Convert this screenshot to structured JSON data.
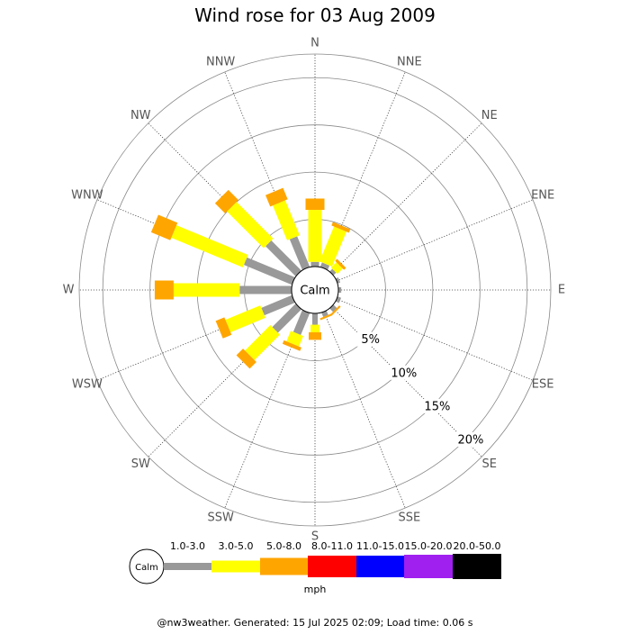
{
  "chart_data": {
    "type": "wind-rose",
    "title": "Wind rose for 03 Aug 2009",
    "directions": [
      "N",
      "NNE",
      "NE",
      "ENE",
      "E",
      "ESE",
      "SE",
      "SSE",
      "S",
      "SSW",
      "SW",
      "WSW",
      "W",
      "WNW",
      "NW",
      "NNW"
    ],
    "calm_label": "Calm",
    "rings": [
      5,
      10,
      15,
      20
    ],
    "ring_labels": [
      "5%",
      "10%",
      "15%",
      "20%"
    ],
    "rmax": 22.5,
    "unit": "mph",
    "speed_bins": [
      {
        "label": "1.0-3.0",
        "color": "#999999"
      },
      {
        "label": "3.0-5.0",
        "color": "#ffff00"
      },
      {
        "label": "5.0-8.0",
        "color": "#ffa500"
      },
      {
        "label": "8.0-11.0",
        "color": "#ff0000"
      },
      {
        "label": "11.0-15.0",
        "color": "#0000ff"
      },
      {
        "label": "15.0-20.0",
        "color": "#a020f0"
      },
      {
        "label": "20.0-50.0",
        "color": "#000000"
      }
    ],
    "frequencies": [
      [
        0.5,
        5.5,
        1.2,
        0,
        0,
        0,
        0
      ],
      [
        0.5,
        4.0,
        0.4,
        0,
        0,
        0,
        0
      ],
      [
        0.4,
        0.8,
        0.3,
        0,
        0,
        0,
        0
      ],
      [
        0.3,
        0,
        0,
        0,
        0,
        0,
        0
      ],
      [
        0.3,
        0,
        0,
        0,
        0,
        0,
        0
      ],
      [
        0.4,
        0,
        0,
        0,
        0,
        0,
        0
      ],
      [
        0.5,
        0,
        0.2,
        0,
        0,
        0,
        0
      ],
      [
        0.5,
        0,
        0.2,
        0,
        0,
        0,
        0
      ],
      [
        1.2,
        0.8,
        0.8,
        0,
        0,
        0,
        0
      ],
      [
        2.5,
        1.2,
        0.4,
        0,
        0,
        0,
        0
      ],
      [
        3.5,
        3.8,
        1.0,
        0,
        0,
        0,
        0
      ],
      [
        3.5,
        4.0,
        1.0,
        0,
        0,
        0,
        0
      ],
      [
        5.5,
        7.0,
        2.0,
        0,
        0,
        0,
        0
      ],
      [
        5.5,
        8.2,
        2.2,
        0,
        0,
        0,
        0
      ],
      [
        4.5,
        5.5,
        1.5,
        0,
        0,
        0,
        0
      ],
      [
        3.5,
        4.0,
        1.3,
        0,
        0,
        0,
        0
      ]
    ]
  },
  "footer": "@nw3weather. Generated: 15 Jul 2025 02:09; Load time: 0.06 s"
}
